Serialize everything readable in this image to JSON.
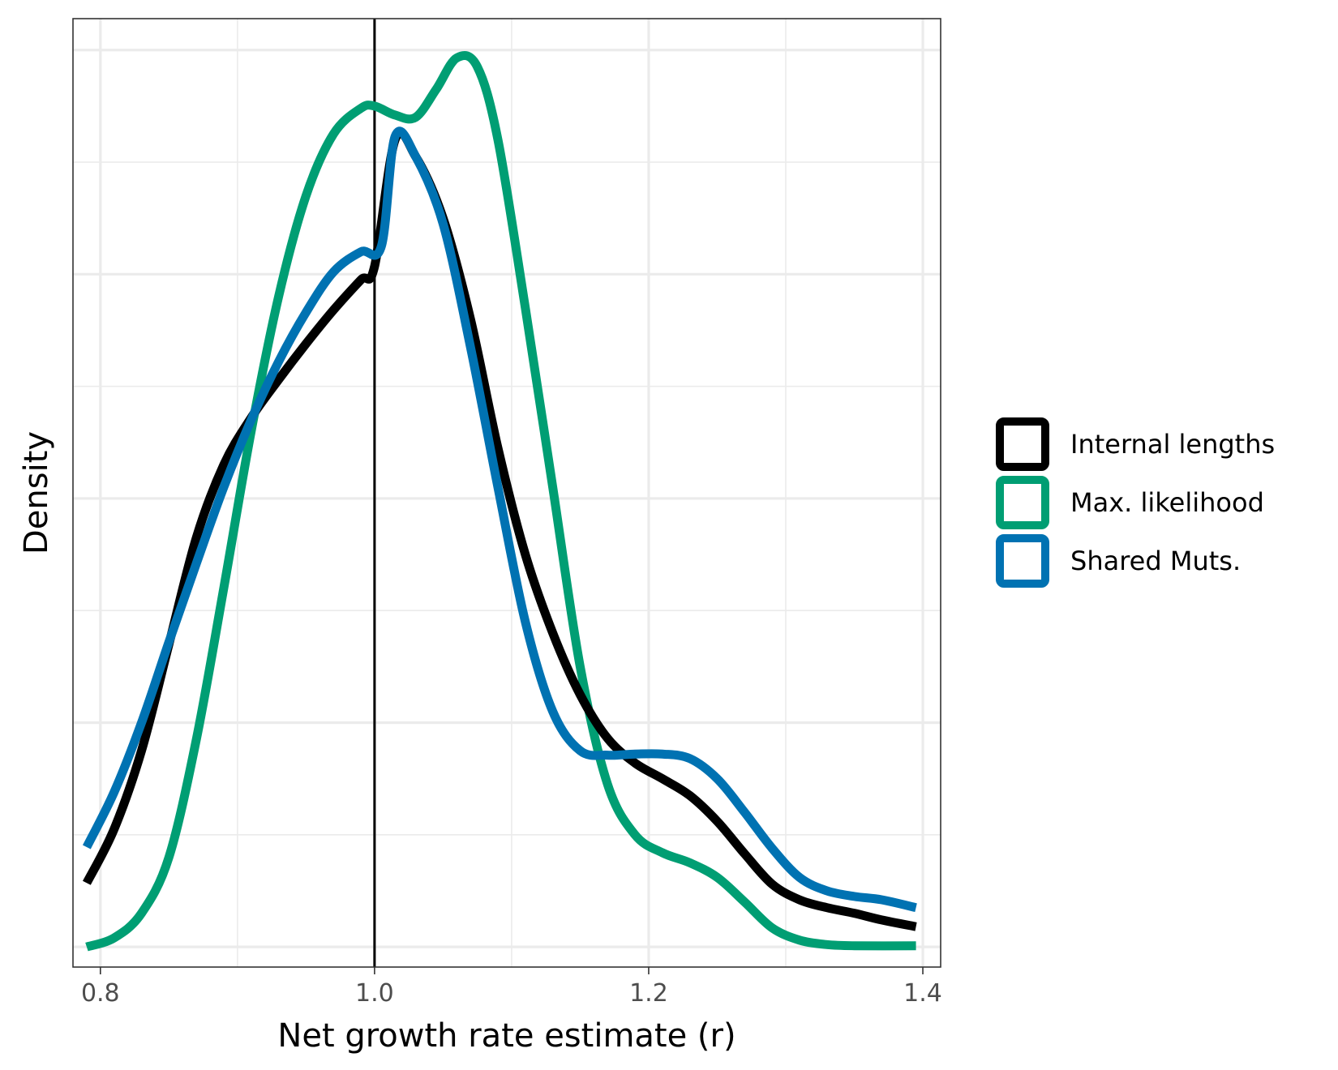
{
  "chart_data": {
    "type": "line",
    "title": "",
    "xlabel": "Net growth rate estimate (r)",
    "ylabel": "Density",
    "xlim": [
      0.78,
      1.413
    ],
    "ylim": [
      -0.18,
      8.28
    ],
    "x_ticks": [
      0.8,
      1.0,
      1.2,
      1.4
    ],
    "x_tick_labels": [
      "0.8",
      "1.0",
      "1.2",
      "1.4"
    ],
    "x_minor_ticks": [
      0.9,
      1.1,
      1.3
    ],
    "y_major_grid": [
      0,
      2,
      4,
      6,
      8
    ],
    "y_minor_grid": [
      1,
      3,
      5,
      7
    ],
    "y_tick_labels_shown": false,
    "grid": true,
    "legend_position": "right",
    "vline": {
      "x": 1.0,
      "color": "#000000"
    },
    "series": [
      {
        "name": "Internal lengths",
        "color": "#000000",
        "x": [
          0.79,
          0.81,
          0.83,
          0.85,
          0.87,
          0.89,
          0.91,
          0.93,
          0.95,
          0.97,
          0.99,
          1.0,
          1.015,
          1.03,
          1.05,
          1.07,
          1.09,
          1.11,
          1.13,
          1.15,
          1.17,
          1.19,
          1.21,
          1.23,
          1.25,
          1.27,
          1.29,
          1.31,
          1.33,
          1.35,
          1.37,
          1.395
        ],
        "values": [
          0.57,
          1.05,
          1.75,
          2.7,
          3.65,
          4.3,
          4.72,
          5.06,
          5.38,
          5.68,
          5.95,
          6.07,
          7.2,
          7.05,
          6.5,
          5.6,
          4.45,
          3.5,
          2.8,
          2.25,
          1.86,
          1.64,
          1.5,
          1.35,
          1.12,
          0.83,
          0.56,
          0.42,
          0.35,
          0.3,
          0.24,
          0.18
        ],
        "labels_note": "density curve"
      },
      {
        "name": "Max. likelihood",
        "color": "#009E73",
        "x": [
          0.79,
          0.81,
          0.83,
          0.85,
          0.87,
          0.89,
          0.91,
          0.93,
          0.95,
          0.97,
          0.99,
          1.0,
          1.015,
          1.03,
          1.045,
          1.06,
          1.075,
          1.09,
          1.11,
          1.13,
          1.15,
          1.17,
          1.19,
          1.21,
          1.23,
          1.25,
          1.27,
          1.29,
          1.31,
          1.33,
          1.35,
          1.395
        ],
        "values": [
          0.0,
          0.08,
          0.3,
          0.8,
          1.85,
          3.2,
          4.6,
          5.8,
          6.7,
          7.25,
          7.48,
          7.5,
          7.42,
          7.4,
          7.65,
          7.93,
          7.85,
          7.2,
          5.7,
          4.1,
          2.5,
          1.45,
          1.0,
          0.84,
          0.75,
          0.62,
          0.4,
          0.17,
          0.06,
          0.02,
          0.01,
          0.01
        ]
      },
      {
        "name": "Shared Muts.",
        "color": "#0072B2",
        "x": [
          0.79,
          0.81,
          0.83,
          0.85,
          0.87,
          0.89,
          0.91,
          0.93,
          0.95,
          0.97,
          0.99,
          1.005,
          1.015,
          1.03,
          1.05,
          1.07,
          1.09,
          1.11,
          1.13,
          1.15,
          1.17,
          1.19,
          1.21,
          1.23,
          1.25,
          1.27,
          1.29,
          1.31,
          1.33,
          1.35,
          1.37,
          1.395
        ],
        "values": [
          0.89,
          1.38,
          2.0,
          2.72,
          3.42,
          4.1,
          4.7,
          5.22,
          5.66,
          6.02,
          6.2,
          6.25,
          7.23,
          7.05,
          6.45,
          5.35,
          4.1,
          2.9,
          2.1,
          1.75,
          1.71,
          1.72,
          1.72,
          1.68,
          1.5,
          1.2,
          0.88,
          0.62,
          0.5,
          0.45,
          0.42,
          0.35
        ]
      }
    ]
  }
}
